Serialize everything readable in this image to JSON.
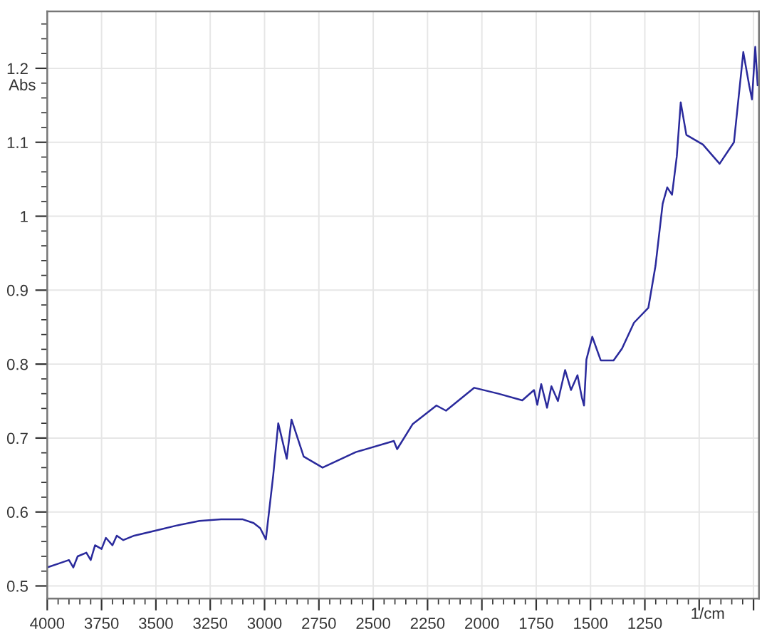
{
  "chart_data": {
    "type": "line",
    "xlabel": "1/cm",
    "ylabel": "Abs",
    "x": [
      4000,
      3950,
      3900,
      3880,
      3860,
      3820,
      3800,
      3780,
      3750,
      3730,
      3700,
      3680,
      3650,
      3600,
      3500,
      3400,
      3300,
      3200,
      3100,
      3050,
      3020,
      2994,
      2960,
      2937,
      2898,
      2876,
      2820,
      2733,
      2580,
      2405,
      2390,
      2318,
      2209,
      2165,
      2035,
      1924,
      1814,
      1760,
      1745,
      1727,
      1700,
      1680,
      1650,
      1617,
      1590,
      1560,
      1540,
      1530,
      1519,
      1492,
      1453,
      1394,
      1355,
      1300,
      1234,
      1201,
      1168,
      1147,
      1125,
      1103,
      1085,
      1059,
      983,
      906,
      840,
      797,
      770,
      757,
      742,
      731
    ],
    "series": [
      {
        "color": "#2a2a9c",
        "values": [
          0.525,
          0.53,
          0.535,
          0.525,
          0.54,
          0.545,
          0.535,
          0.555,
          0.55,
          0.565,
          0.555,
          0.568,
          0.562,
          0.568,
          0.575,
          0.582,
          0.588,
          0.59,
          0.59,
          0.585,
          0.578,
          0.563,
          0.65,
          0.72,
          0.672,
          0.725,
          0.675,
          0.66,
          0.681,
          0.696,
          0.685,
          0.719,
          0.744,
          0.737,
          0.768,
          0.76,
          0.751,
          0.765,
          0.745,
          0.773,
          0.741,
          0.77,
          0.75,
          0.792,
          0.765,
          0.785,
          0.755,
          0.744,
          0.806,
          0.837,
          0.805,
          0.805,
          0.821,
          0.856,
          0.876,
          0.933,
          1.017,
          1.039,
          1.029,
          1.081,
          1.154,
          1.11,
          1.097,
          1.071,
          1.1,
          1.222,
          1.177,
          1.158,
          1.229,
          1.177
        ]
      }
    ],
    "xlim": [
      4000,
      725
    ],
    "ylim": [
      0.483,
      1.277
    ],
    "xticks": [
      4000,
      3750,
      3500,
      3250,
      3000,
      2750,
      2500,
      2250,
      2000,
      1750,
      1500,
      1250,
      {
        "value": 1000,
        "label": null
      },
      {
        "value": 750,
        "label": null
      }
    ],
    "yticks": [
      0.5,
      0.6,
      0.7,
      0.8,
      0.9,
      1,
      1.1,
      1.2
    ],
    "grid": true,
    "marker": "none",
    "line_style": "solid"
  }
}
